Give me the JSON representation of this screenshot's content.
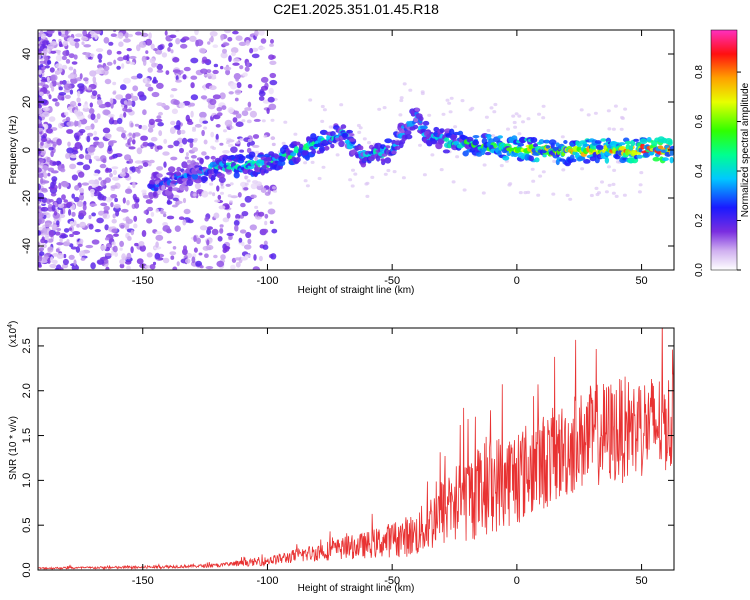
{
  "title": "C2E1.2025.351.01.45.R18",
  "spectrogram": {
    "xlabel": "Height of straight line (km)",
    "ylabel": "Frequency (Hz)",
    "xlim": [
      -192,
      63
    ],
    "ylim": [
      -50,
      50
    ],
    "x_ticks": [
      -150,
      -100,
      -50,
      0,
      50
    ],
    "y_ticks": [
      -40,
      -20,
      0,
      20,
      40
    ],
    "colorbar": {
      "label": "Normalized spectral amplitude",
      "range": [
        0.0,
        0.97
      ],
      "ticks": [
        "0.0",
        "0.2",
        "0.4",
        "0.6",
        "0.8"
      ],
      "tick_values": [
        0.0,
        0.2,
        0.4,
        0.6,
        0.8
      ]
    },
    "trace": [
      {
        "x": -145,
        "y": -15,
        "a": 0.3
      },
      {
        "x": -130,
        "y": -10,
        "a": 0.35
      },
      {
        "x": -120,
        "y": -7,
        "a": 0.45
      },
      {
        "x": -110,
        "y": -7,
        "a": 0.5
      },
      {
        "x": -100,
        "y": -5,
        "a": 0.5
      },
      {
        "x": -90,
        "y": -2,
        "a": 0.5
      },
      {
        "x": -80,
        "y": 3,
        "a": 0.5
      },
      {
        "x": -70,
        "y": 7,
        "a": 0.45
      },
      {
        "x": -65,
        "y": 1,
        "a": 0.4
      },
      {
        "x": -60,
        "y": -3,
        "a": 0.45
      },
      {
        "x": -50,
        "y": 0,
        "a": 0.45
      },
      {
        "x": -45,
        "y": 8,
        "a": 0.4
      },
      {
        "x": -40,
        "y": 14,
        "a": 0.35
      },
      {
        "x": -35,
        "y": 5,
        "a": 0.45
      },
      {
        "x": -25,
        "y": 3,
        "a": 0.5
      },
      {
        "x": -15,
        "y": 2,
        "a": 0.6
      },
      {
        "x": -5,
        "y": 1,
        "a": 0.65
      },
      {
        "x": 5,
        "y": 0,
        "a": 0.75
      },
      {
        "x": 20,
        "y": -1,
        "a": 0.75
      },
      {
        "x": 35,
        "y": 0,
        "a": 0.8
      },
      {
        "x": 50,
        "y": 0,
        "a": 0.9
      },
      {
        "x": 62,
        "y": 0,
        "a": 0.95
      }
    ]
  },
  "snr": {
    "ylabel": "SNR (10 * v/v)",
    "scale": "(x10",
    "scale_exp": "4",
    "xlabel": "Height of straight line (km)",
    "xlim": [
      -192,
      63
    ],
    "ylim": [
      0,
      2.7
    ],
    "x_ticks": [
      -150,
      -100,
      -50,
      0,
      50
    ],
    "y_ticks": [
      "0.0",
      "0.5",
      "1.0",
      "1.5",
      "2.0",
      "2.5"
    ],
    "y_tick_values": [
      0,
      0.5,
      1.0,
      1.5,
      2.0,
      2.5
    ],
    "series_color": "#e83232",
    "envelope": {
      "x": [
        -192,
        -150,
        -120,
        -100,
        -80,
        -60,
        -40,
        -30,
        -20,
        -10,
        0,
        10,
        20,
        30,
        40,
        50,
        63
      ],
      "y": [
        0.02,
        0.03,
        0.05,
        0.1,
        0.2,
        0.28,
        0.4,
        0.65,
        0.8,
        0.95,
        1.05,
        1.2,
        1.35,
        1.5,
        1.55,
        1.6,
        1.65
      ]
    },
    "spread": {
      "x": [
        -192,
        -120,
        -100,
        -80,
        -60,
        -40,
        -30,
        -20,
        -10,
        0,
        20,
        40,
        63
      ],
      "y": [
        0.01,
        0.02,
        0.05,
        0.1,
        0.15,
        0.25,
        0.4,
        0.5,
        0.55,
        0.55,
        0.55,
        0.6,
        0.55
      ]
    }
  }
}
